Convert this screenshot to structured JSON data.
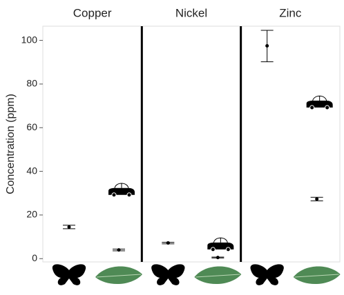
{
  "chart_data": {
    "type": "dot",
    "y_label": "Concentration (ppm)",
    "ylim": [
      -1.5,
      106.5
    ],
    "yticks": [
      0,
      20,
      40,
      60,
      80,
      100
    ],
    "panels": [
      {
        "title": "Copper",
        "groups": [
          [
            {
              "value": 14.5,
              "low": 13.7,
              "high": 15.3
            }
          ],
          [
            {
              "value": 4,
              "low": 3.6,
              "high": 4.4
            },
            {
              "value": 30.8,
              "marker": "car"
            }
          ]
        ]
      },
      {
        "title": "Nickel",
        "groups": [
          [
            {
              "value": 7.2,
              "low": 6.8,
              "high": 7.5
            }
          ],
          [
            {
              "value": 0.5,
              "low": 0.3,
              "high": 0.7
            },
            {
              "value": 5.8,
              "marker": "car"
            }
          ]
        ]
      },
      {
        "title": "Zinc",
        "groups": [
          [
            {
              "value": 97.5,
              "low": 90.2,
              "high": 104.6
            }
          ],
          [
            {
              "value": 27.3,
              "low": 26.5,
              "high": 28.1
            },
            {
              "value": 70.8,
              "marker": "car"
            }
          ]
        ]
      }
    ]
  }
}
